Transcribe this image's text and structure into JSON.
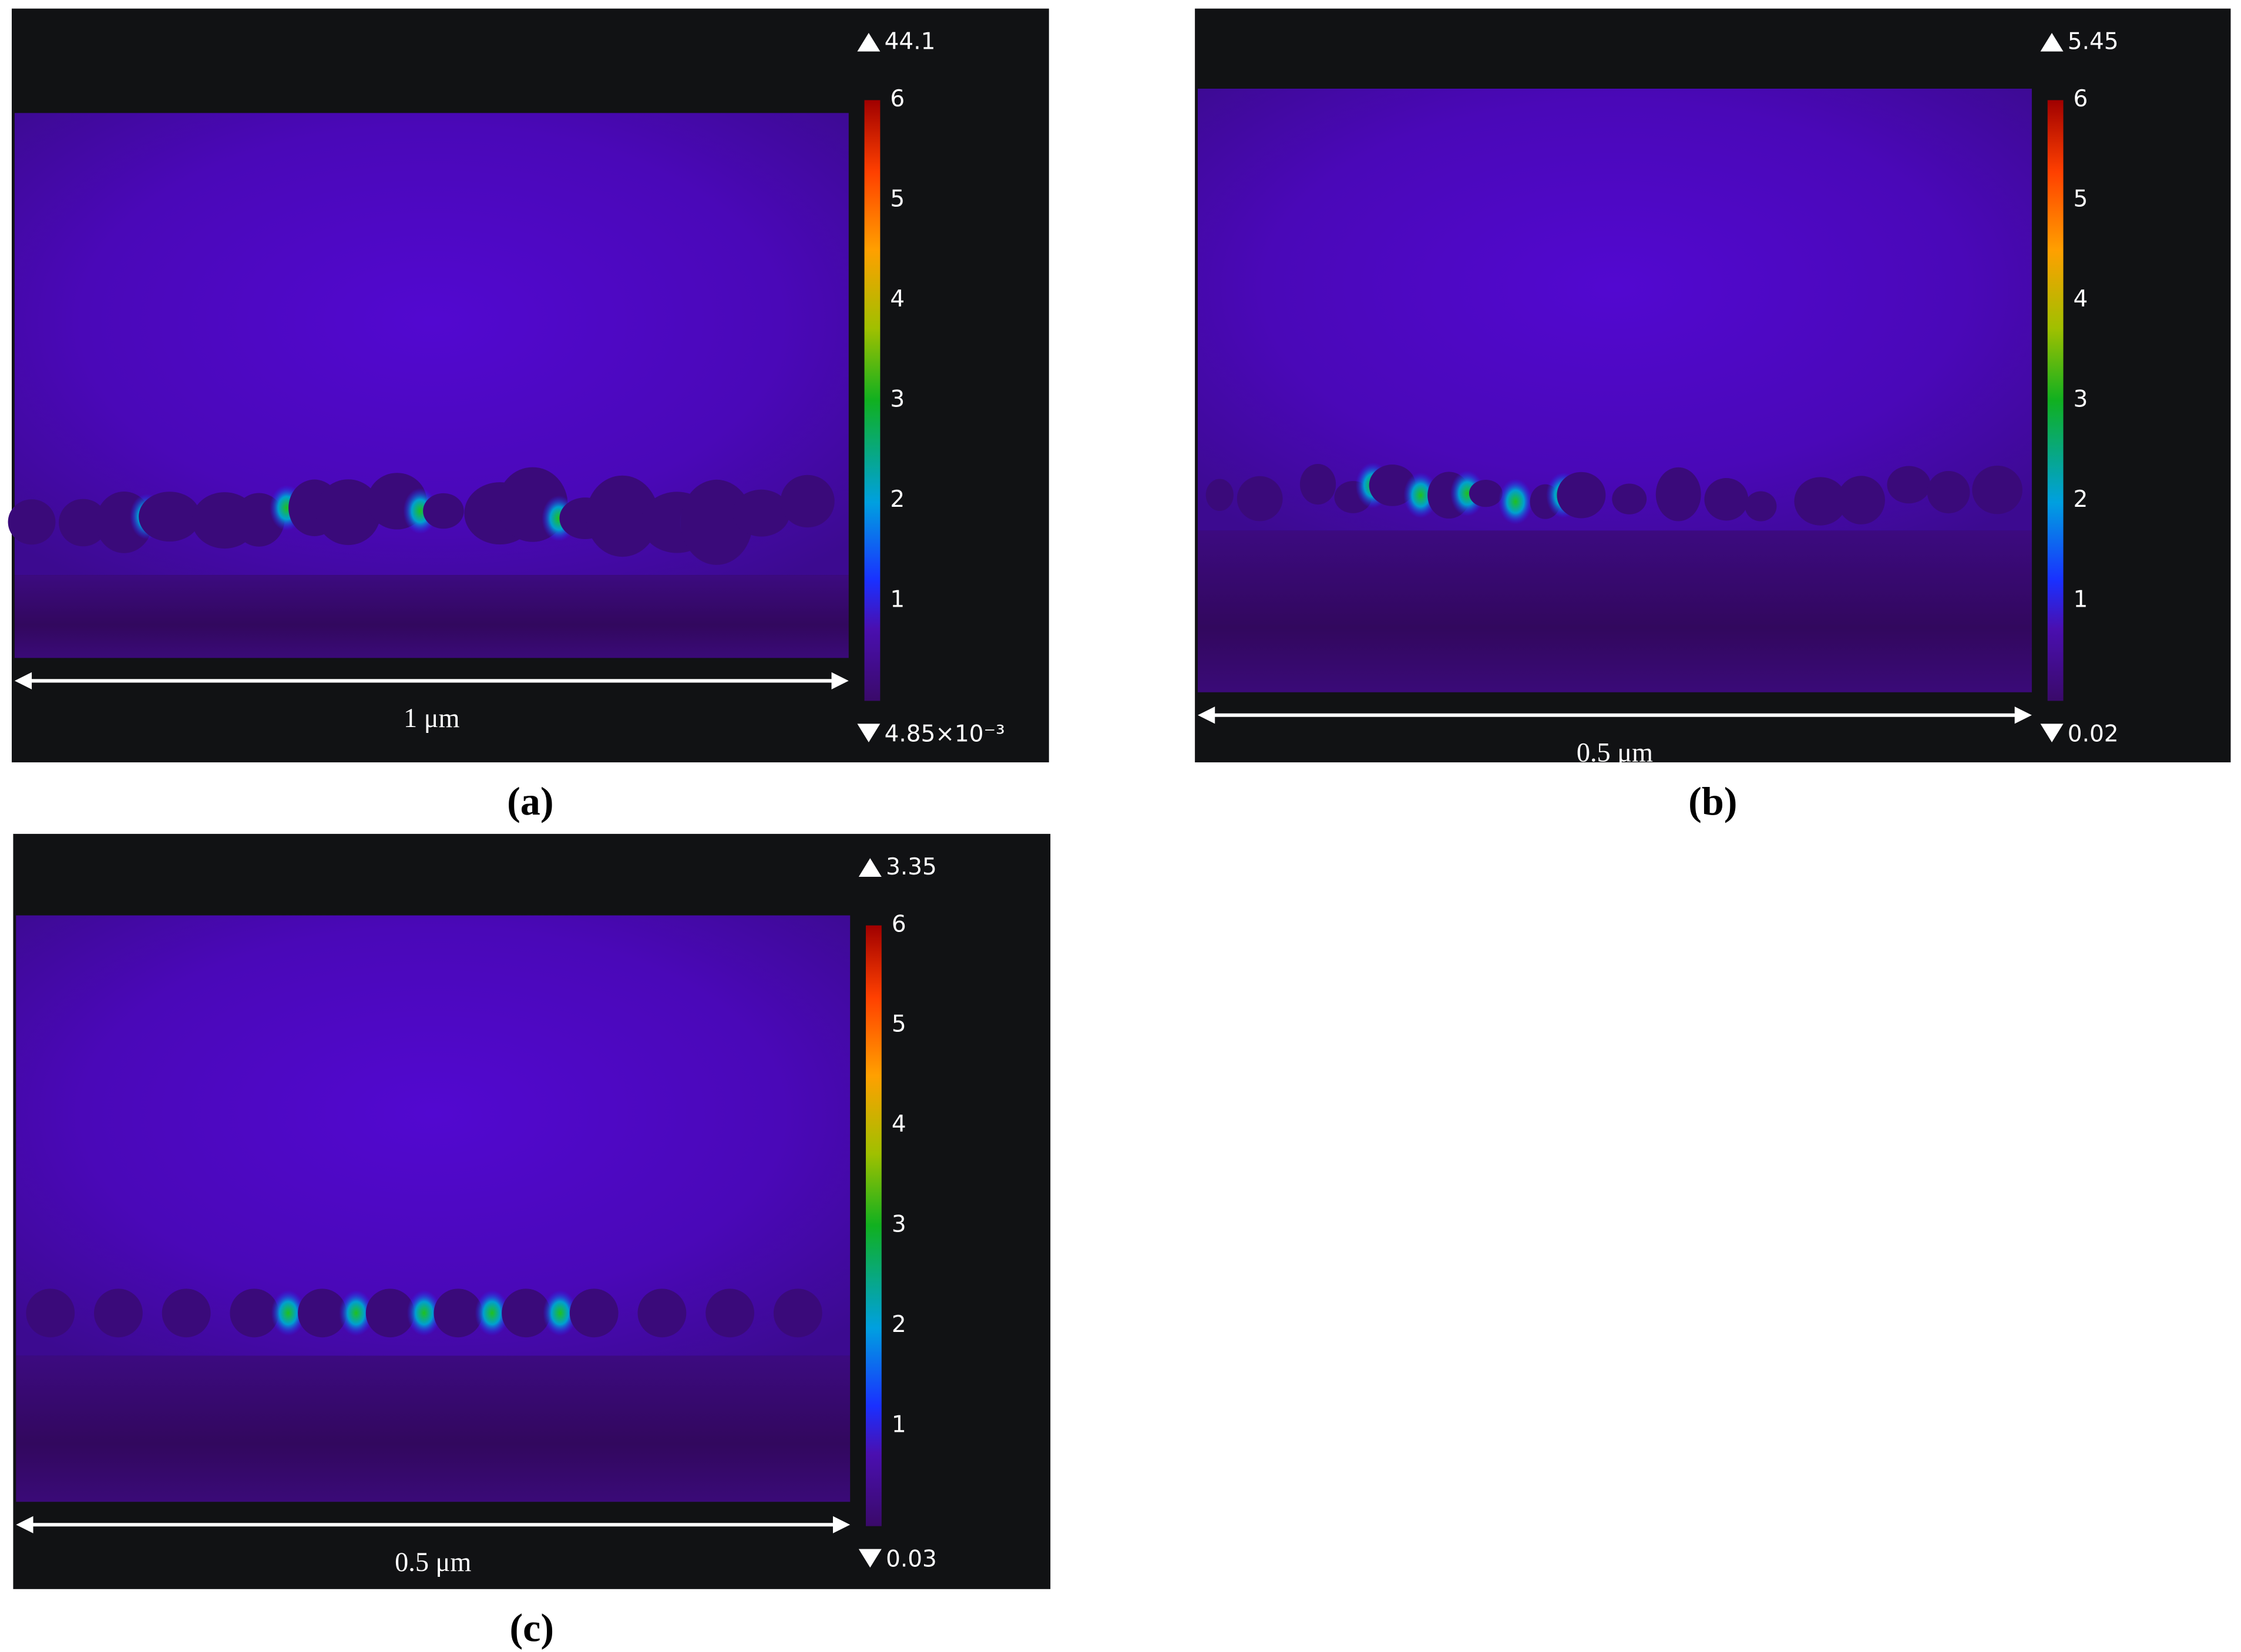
{
  "panels": [
    {
      "label": "(a)",
      "max": "44.1",
      "min": "4.85×10⁻³",
      "colorbar_ticks": [
        "6",
        "5",
        "4",
        "3",
        "2",
        "1"
      ],
      "scale_bar": "1 μm"
    },
    {
      "label": "(b)",
      "max": "5.45",
      "min": "0.02",
      "colorbar_ticks": [
        "6",
        "5",
        "4",
        "3",
        "2",
        "1"
      ],
      "scale_bar": "0.5 μm"
    },
    {
      "label": "(c)",
      "max": "3.35",
      "min": "0.03",
      "colorbar_ticks": [
        "6",
        "5",
        "4",
        "3",
        "2",
        "1"
      ],
      "scale_bar": "0.5 μm"
    }
  ]
}
